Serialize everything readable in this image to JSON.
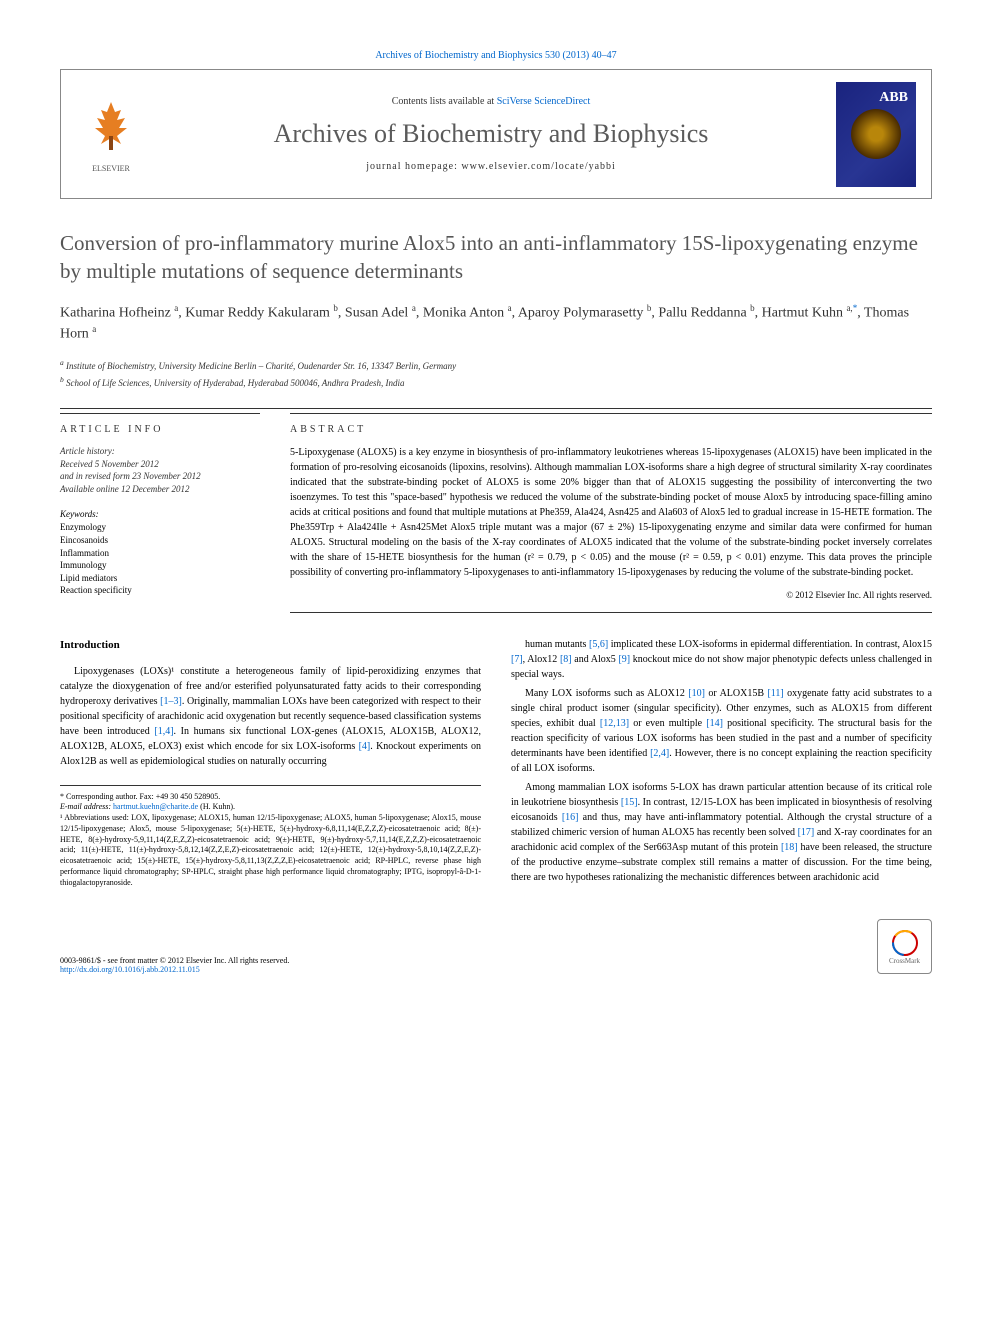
{
  "top_citation": "Archives of Biochemistry and Biophysics 530 (2013) 40–47",
  "header": {
    "contents_prefix": "Contents lists available at ",
    "contents_link": "SciVerse ScienceDirect",
    "journal": "Archives of Biochemistry and Biophysics",
    "homepage_prefix": "journal homepage: ",
    "homepage_url": "www.elsevier.com/locate/yabbi",
    "elsevier": "ELSEVIER",
    "cover_abb": "ABB"
  },
  "title": "Conversion of pro-inflammatory murine Alox5 into an anti-inflammatory 15S-lipoxygenating enzyme by multiple mutations of sequence determinants",
  "authors_html": "Katharina Hofheinz <sup>a</sup>, Kumar Reddy Kakularam <sup>b</sup>, Susan Adel <sup>a</sup>, Monika Anton <sup>a</sup>, Aparoy Polymarasetty <sup>b</sup>, Pallu Reddanna <sup>b</sup>, Hartmut Kuhn <sup>a,</sup><sup class=\"corr\">*</sup>, Thomas Horn <sup>a</sup>",
  "affiliations": [
    "a Institute of Biochemistry, University Medicine Berlin – Charité, Oudenarder Str. 16, 13347 Berlin, Germany",
    "b School of Life Sciences, University of Hyderabad, Hyderabad 500046, Andhra Pradesh, India"
  ],
  "info": {
    "header": "article info",
    "history_label": "Article history:",
    "received": "Received 5 November 2012",
    "revised": "and in revised form 23 November 2012",
    "online": "Available online 12 December 2012",
    "keywords_label": "Keywords:",
    "keywords": [
      "Enzymology",
      "Eincosanoids",
      "Inflammation",
      "Immunology",
      "Lipid mediators",
      "Reaction specificity"
    ]
  },
  "abstract": {
    "header": "abstract",
    "text": "5-Lipoxygenase (ALOX5) is a key enzyme in biosynthesis of pro-inflammatory leukotrienes whereas 15-lipoxygenases (ALOX15) have been implicated in the formation of pro-resolving eicosanoids (lipoxins, resolvins). Although mammalian LOX-isoforms share a high degree of structural similarity X-ray coordinates indicated that the substrate-binding pocket of ALOX5 is some 20% bigger than that of ALOX15 suggesting the possibility of interconverting the two isoenzymes. To test this \"space-based\" hypothesis we reduced the volume of the substrate-binding pocket of mouse Alox5 by introducing space-filling amino acids at critical positions and found that multiple mutations at Phe359, Ala424, Asn425 and Ala603 of Alox5 led to gradual increase in 15-HETE formation. The Phe359Trp + Ala424Ile + Asn425Met Alox5 triple mutant was a major (67 ± 2%) 15-lipoxygenating enzyme and similar data were confirmed for human ALOX5. Structural modeling on the basis of the X-ray coordinates of ALOX5 indicated that the volume of the substrate-binding pocket inversely correlates with the share of 15-HETE biosynthesis for the human (r² = 0.79, p < 0.05) and the mouse (r² = 0.59, p < 0.01) enzyme. This data proves the principle possibility of converting pro-inflammatory 5-lipoxygenases to anti-inflammatory 15-lipoxygenases by reducing the volume of the substrate-binding pocket.",
    "copyright": "© 2012 Elsevier Inc. All rights reserved."
  },
  "body": {
    "intro_head": "Introduction",
    "left_paras": [
      "Lipoxygenases (LOXs)¹ constitute a heterogeneous family of lipid-peroxidizing enzymes that catalyze the dioxygenation of free and/or esterified polyunsaturated fatty acids to their corresponding hydroperoxy derivatives [1–3]. Originally, mammalian LOXs have been categorized with respect to their positional specificity of arachidonic acid oxygenation but recently sequence-based classification systems have been introduced [1,4]. In humans six functional LOX-genes (ALOX15, ALOX15B, ALOX12, ALOX12B, ALOX5, eLOX3) exist which encode for six LOX-isoforms [4]. Knockout experiments on Alox12B as well as epidemiological studies on naturally occurring"
    ],
    "right_paras": [
      "human mutants [5,6] implicated these LOX-isoforms in epidermal differentiation. In contrast, Alox15 [7], Alox12 [8] and Alox5 [9] knockout mice do not show major phenotypic defects unless challenged in special ways.",
      "Many LOX isoforms such as ALOX12 [10] or ALOX15B [11] oxygenate fatty acid substrates to a single chiral product isomer (singular specificity). Other enzymes, such as ALOX15 from different species, exhibit dual [12,13] or even multiple [14] positional specificity. The structural basis for the reaction specificity of various LOX isoforms has been studied in the past and a number of specificity determinants have been identified [2,4]. However, there is no concept explaining the reaction specificity of all LOX isoforms.",
      "Among mammalian LOX isoforms 5-LOX has drawn particular attention because of its critical role in leukotriene biosynthesis [15]. In contrast, 12/15-LOX has been implicated in biosynthesis of resolving eicosanoids [16] and thus, may have anti-inflammatory potential. Although the crystal structure of a stabilized chimeric version of human ALOX5 has recently been solved [17] and X-ray coordinates for an arachidonic acid complex of the Ser663Asp mutant of this protein [18] have been released, the structure of the productive enzyme–substrate complex still remains a matter of discussion. For the time being, there are two hypotheses rationalizing the mechanistic differences between arachidonic acid"
    ]
  },
  "footnotes": {
    "corr": "* Corresponding author. Fax: +49 30 450 528905.",
    "email_label": "E-mail address: ",
    "email": "hartmut.kuehn@charite.de",
    "email_name": " (H. Kuhn).",
    "abbr": "¹ Abbreviations used: LOX, lipoxygenase; ALOX15, human 12/15-lipoxygenase; ALOX5, human 5-lipoxygenase; Alox15, mouse 12/15-lipoxygenase; Alox5, mouse 5-lipoxygenase; 5(±)-HETE, 5(±)-hydroxy-6,8,11,14(E,Z,Z,Z)-eicosatetraenoic acid; 8(±)-HETE, 8(±)-hydroxy-5,9,11,14(Z,E,Z,Z)-eicosatetraenoic acid; 9(±)-HETE, 9(±)-hydroxy-5,7,11,14(E,Z,Z,Z)-eicosatetraenoic acid; 11(±)-HETE, 11(±)-hydroxy-5,8,12,14(Z,Z,E,Z)-eicosatetraenoic acid; 12(±)-HETE, 12(±)-hydroxy-5,8,10,14(Z,Z,E,Z)-eicosatetraenoic acid; 15(±)-HETE, 15(±)-hydroxy-5,8,11,13(Z,Z,Z,E)-eicosatetraenoic acid; RP-HPLC, reverse phase high performance liquid chromatography; SP-HPLC, straight phase high performance liquid chromatography; IPTG, isopropyl-â-D-1-thiogalactopyranoside."
  },
  "footer": {
    "line1": "0003-9861/$ - see front matter © 2012 Elsevier Inc. All rights reserved.",
    "doi": "http://dx.doi.org/10.1016/j.abb.2012.11.015",
    "crossmark": "CrossMark"
  },
  "colors": {
    "link": "#0066cc",
    "title_gray": "#555555",
    "orange": "#e67e22",
    "cover_bg": "#1a237e"
  }
}
